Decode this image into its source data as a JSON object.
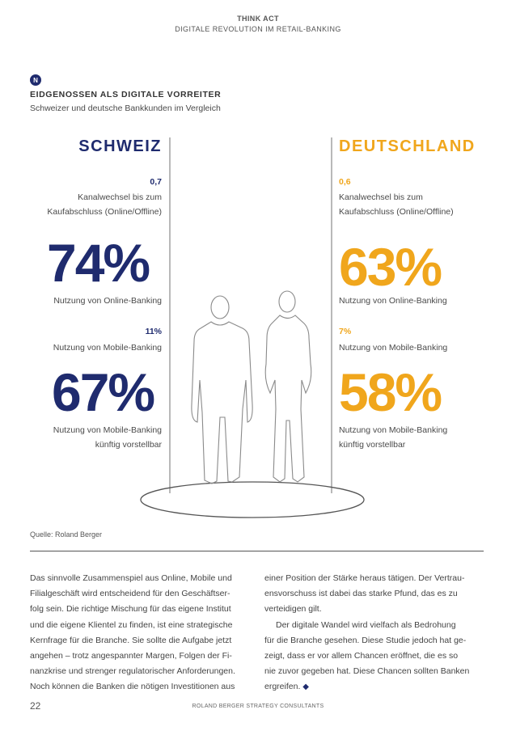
{
  "header": {
    "line1": "THINK ACT",
    "line2": "DIGITALE REVOLUTION IM RETAIL-BANKING"
  },
  "section": {
    "badge": "N",
    "title": "EIDGENOSSEN ALS DIGITALE VORREITER",
    "subtitle": "Schweizer und deutsche Bankkunden im Vergleich"
  },
  "schweiz": {
    "name": "SCHWEIZ",
    "switch_value": "0,7",
    "switch_label_1": "Kanalwechsel bis zum",
    "switch_label_2": "Kaufabschluss (Online/Offline)",
    "online_value": "74%",
    "online_label": "Nutzung von Online-Banking",
    "mobile_value": "11%",
    "mobile_label": "Nutzung von Mobile-Banking",
    "future_value": "67%",
    "future_label_1": "Nutzung von Mobile-Banking",
    "future_label_2": "künftig vorstellbar"
  },
  "deutschland": {
    "name": "DEUTSCHLAND",
    "switch_value": "0,6",
    "switch_label_1": "Kanalwechsel bis zum",
    "switch_label_2": "Kaufabschluss (Online/Offline)",
    "online_value": "63%",
    "online_label": "Nutzung von Online-Banking",
    "mobile_value": "7%",
    "mobile_label": "Nutzung von Mobile-Banking",
    "future_value": "58%",
    "future_label_1": "Nutzung von Mobile-Banking",
    "future_label_2": "künftig vorstellbar"
  },
  "source": "Quelle: Roland Berger",
  "body": {
    "left": [
      "Das sinnvolle Zusammenspiel aus Online, Mobile und",
      "Filialgeschäft wird entscheidend für den Geschäftser-",
      "folg sein. Die richtige Mischung für das eigene Institut",
      "und die eigene Klientel zu finden, ist eine strategische",
      "Kernfrage für die Branche. Sie sollte die Aufgabe jetzt",
      "angehen – trotz angespannter Margen, Folgen der Fi-",
      "nanzkrise und strenger regulatorischer Anforderungen.",
      "Noch können die Banken die nötigen Investitionen aus"
    ],
    "right": [
      "einer Position der Stärke heraus tätigen. Der Vertrau-",
      "ensvorschuss ist dabei das starke Pfund, das es zu",
      "verteidigen gilt.",
      "Der digitale Wandel wird vielfach als Bedrohung",
      "für die Branche gesehen. Diese Studie jedoch hat ge-",
      "zeigt, dass er vor allem Chancen eröffnet, die es so",
      "nie zuvor gegeben hat. Diese Chancen sollten Banken",
      "ergreifen."
    ]
  },
  "footer": {
    "page_number": "22",
    "company": "ROLAND BERGER STRATEGY CONSULTANTS"
  },
  "colors": {
    "navy": "#1f2b6e",
    "gold": "#f0a61c"
  }
}
